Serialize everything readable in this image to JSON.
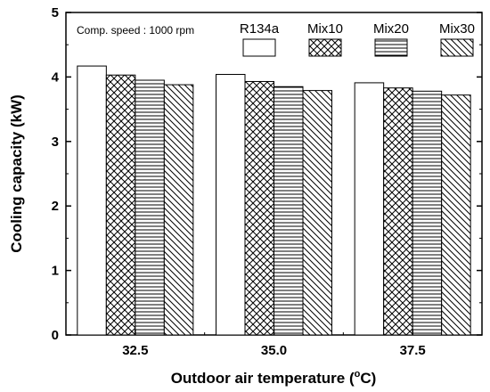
{
  "chart_data": {
    "type": "bar",
    "annotation": "Comp. speed : 1000 rpm",
    "xlabel": "Outdoor air temperature",
    "xlabel_unit_deg": "o",
    "xlabel_unit_c": "C",
    "ylabel": "Cooling capacity (kW)",
    "ylim": [
      0,
      5
    ],
    "yticks": [
      "0",
      "1",
      "2",
      "3",
      "4",
      "5"
    ],
    "categories": [
      "32.5",
      "35.0",
      "37.5"
    ],
    "legend_placement": "top-right",
    "series": [
      {
        "name": "R134a",
        "pattern": "blank",
        "values": [
          4.17,
          4.04,
          3.91
        ]
      },
      {
        "name": "Mix10",
        "pattern": "crosshatch",
        "values": [
          4.03,
          3.93,
          3.83
        ]
      },
      {
        "name": "Mix20",
        "pattern": "horizontal",
        "values": [
          3.95,
          3.85,
          3.78
        ]
      },
      {
        "name": "Mix30",
        "pattern": "diagonal",
        "values": [
          3.88,
          3.79,
          3.72
        ]
      }
    ]
  }
}
